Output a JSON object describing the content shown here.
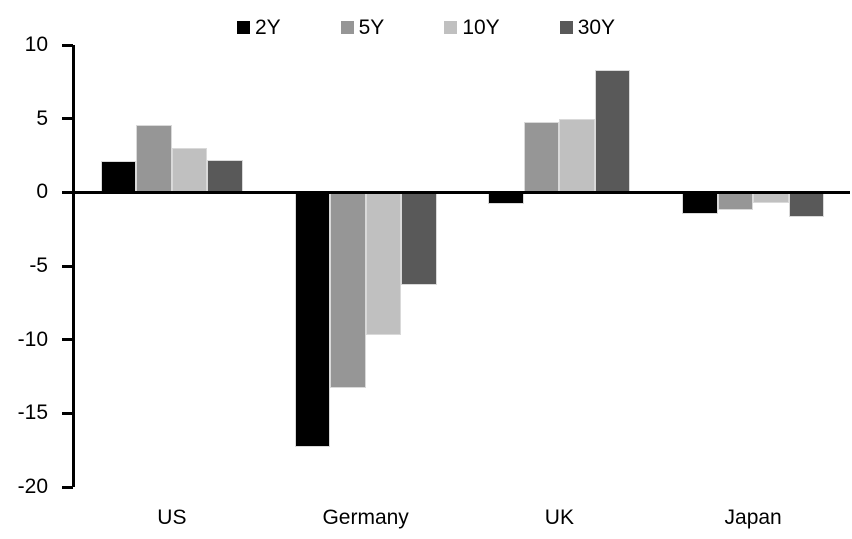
{
  "chart_data": {
    "type": "bar",
    "title": "",
    "xlabel": "",
    "ylabel": "",
    "categories": [
      "US",
      "Germany",
      "UK",
      "Japan"
    ],
    "series": [
      {
        "name": "2Y",
        "color": "#000000",
        "values": [
          2.1,
          -17.3,
          -0.8,
          -1.5
        ]
      },
      {
        "name": "5Y",
        "color": "#969696",
        "values": [
          4.6,
          -13.3,
          4.8,
          -1.2
        ]
      },
      {
        "name": "10Y",
        "color": "#c0c0c0",
        "values": [
          3.0,
          -9.7,
          5.0,
          -0.7
        ]
      },
      {
        "name": "30Y",
        "color": "#595959",
        "values": [
          2.2,
          -6.3,
          8.3,
          -1.7
        ]
      }
    ],
    "ylim": [
      -20,
      10
    ],
    "yticks": [
      10,
      5,
      0,
      -5,
      -10,
      -15,
      -20
    ],
    "grid": false,
    "legend_position": "top-center",
    "axis_color": "#000000",
    "bar_border_color": "#d9d9d9",
    "background_color": "#ffffff"
  }
}
